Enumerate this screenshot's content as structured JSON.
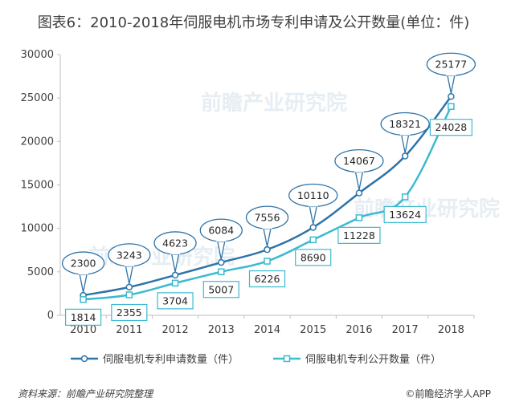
{
  "title": "图表6：2010-2018年伺服电机市场专利申请及公开数量(单位：件)",
  "footer": {
    "source": "资料来源：前瞻产业研究院整理",
    "brand": "©前瞻经济学人APP"
  },
  "watermark": "前瞻产业研究院",
  "chart_data": {
    "type": "line",
    "categories": [
      "2010",
      "2011",
      "2012",
      "2013",
      "2014",
      "2015",
      "2016",
      "2017",
      "2018"
    ],
    "ylim": [
      0,
      30000
    ],
    "yticks": [
      0,
      5000,
      10000,
      15000,
      20000,
      25000,
      30000
    ],
    "series": [
      {
        "name": "伺服电机专利申请数量（件）",
        "values": [
          2300,
          3243,
          4623,
          6084,
          7556,
          10110,
          14067,
          18321,
          25177
        ],
        "color": "#2e74a8",
        "marker": "circle",
        "label_style": "bubble"
      },
      {
        "name": "伺服电机专利公开数量（件）",
        "values": [
          1814,
          2355,
          3704,
          5007,
          6226,
          8690,
          11228,
          13624,
          24028
        ],
        "color": "#3bbad0",
        "marker": "square",
        "label_style": "box"
      }
    ],
    "legend": "bottom",
    "grid": false
  }
}
